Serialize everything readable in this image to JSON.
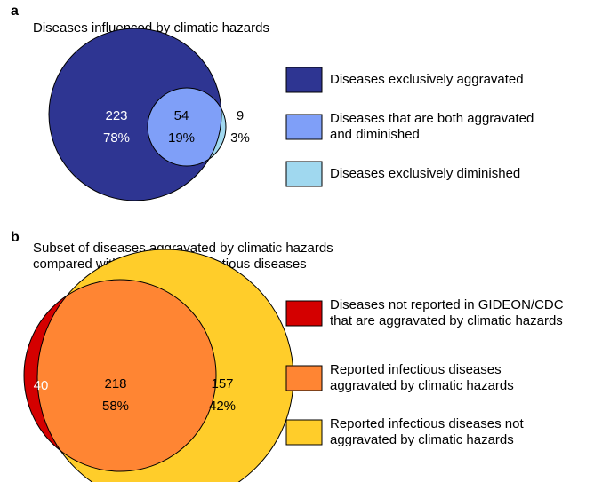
{
  "chart_data": [
    {
      "type": "venn",
      "panel": "a",
      "title": [
        "Diseases influenced by climatic hazards"
      ],
      "values": [
        223,
        54,
        9
      ],
      "shares": [
        78,
        19,
        3
      ],
      "share_labels": [
        "78%",
        "19%",
        "3%"
      ],
      "series": [
        {
          "name": [
            "Diseases exclusively aggravated"
          ],
          "color": "#2e3592"
        },
        {
          "name": [
            "Diseases that are both aggravated",
            "and diminished"
          ],
          "color": "#7f9ff8"
        },
        {
          "name": [
            "Diseases exclusively diminished"
          ],
          "color": "#a0d8ef"
        }
      ]
    },
    {
      "type": "venn",
      "panel": "b",
      "title": [
        "Subset of diseases aggravated by climatic hazards",
        "compared with all reported infectious diseases"
      ],
      "values": [
        40,
        218,
        157
      ],
      "shares": [
        null,
        58,
        42
      ],
      "share_labels": [
        null,
        "58%",
        "42%"
      ],
      "series": [
        {
          "name": [
            "Diseases not reported in GIDEON/CDC",
            "that are aggravated by climatic hazards"
          ],
          "color": "#d40000"
        },
        {
          "name": [
            "Reported infectious diseases",
            "aggravated by climatic hazards"
          ],
          "color": "#ff8533"
        },
        {
          "name": [
            "Reported infectious diseases not",
            "aggravated by climatic hazards"
          ],
          "color": "#ffcd2a"
        }
      ]
    }
  ]
}
